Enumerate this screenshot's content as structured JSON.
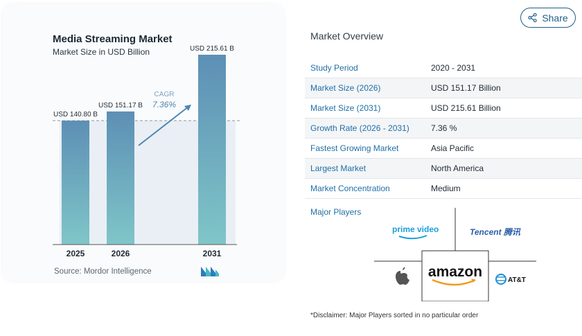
{
  "chart": {
    "title": "Media Streaming Market",
    "subtitle": "Market Size in USD Billion",
    "source": "Source:  Mordor Intelligence",
    "cagr_label": "CAGR",
    "cagr_value": "7.36%"
  },
  "chart_data": {
    "type": "bar",
    "title": "Media Streaming Market",
    "subtitle": "Market Size in USD Billion",
    "categories": [
      "2025",
      "2026",
      "2031"
    ],
    "values": [
      140.8,
      151.17,
      215.61
    ],
    "value_labels": [
      "USD 140.80 B",
      "USD 151.17 B",
      "USD 215.61 B"
    ],
    "ylim": [
      0,
      240
    ],
    "grid": false,
    "bar_color_top": "#5d8fb5",
    "bar_color_bottom": "#7fc6c8"
  },
  "share": {
    "label": "Share"
  },
  "overview": {
    "title": "Market Overview",
    "rows": [
      {
        "label": "Study Period",
        "value": "2020 - 2031"
      },
      {
        "label": "Market Size (2026)",
        "value": "USD 151.17 Billion"
      },
      {
        "label": "Market Size (2031)",
        "value": "USD 215.61 Billion"
      },
      {
        "label": "Growth Rate (2026 - 2031)",
        "value": "7.36 %"
      },
      {
        "label": "Fastest Growing Market",
        "value": "Asia Pacific"
      },
      {
        "label": "Largest Market",
        "value": "North America"
      },
      {
        "label": "Market Concentration",
        "value": "Medium"
      }
    ],
    "players_label": "Major Players",
    "players": {
      "prime": "prime video",
      "tencent": "Tencent 腾讯",
      "amazon": "amazon",
      "att": "AT&T"
    },
    "disclaimer": "*Disclaimer: Major Players sorted in no particular order"
  },
  "colors": {
    "accent": "#1f6fa6",
    "share_border": "#1f5d8a"
  }
}
